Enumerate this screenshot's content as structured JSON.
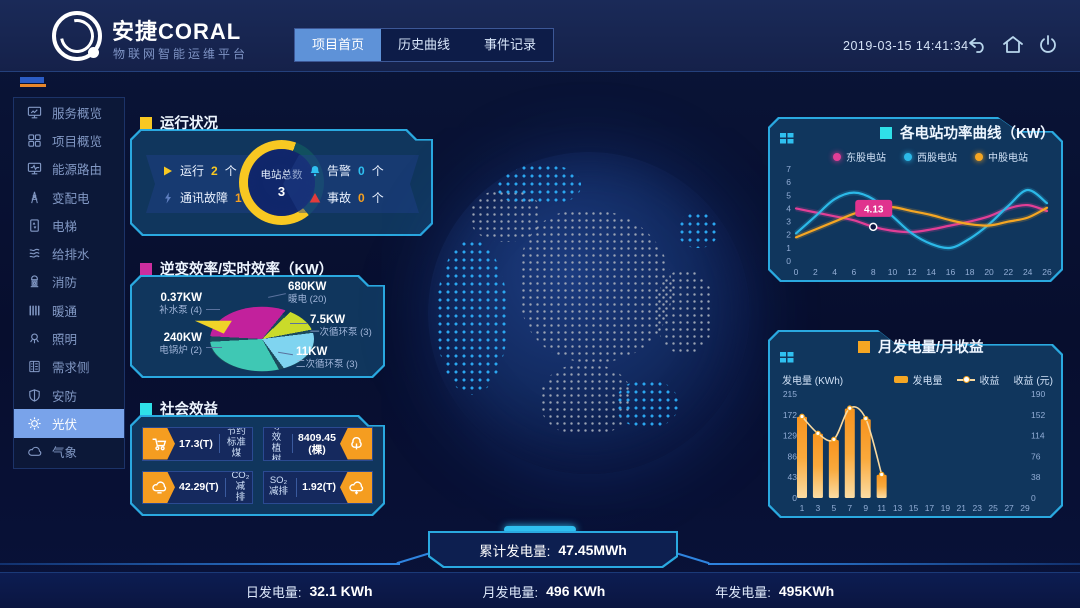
{
  "header": {
    "brand": {
      "title": "安捷CORAL",
      "subtitle": "物联网智能运维平台"
    },
    "tabs": [
      {
        "label": "项目首页",
        "active": true
      },
      {
        "label": "历史曲线",
        "active": false
      },
      {
        "label": "事件记录",
        "active": false
      }
    ],
    "datetime": "2019-03-15 14:41:34",
    "icons": [
      "back-icon",
      "home-icon",
      "power-icon"
    ]
  },
  "sidebar": {
    "items": [
      {
        "icon": "monitor-chart-icon",
        "label": "服务概览",
        "active": false
      },
      {
        "icon": "grid-icon",
        "label": "项目概览",
        "active": false
      },
      {
        "icon": "monitor-wave-icon",
        "label": "能源路由",
        "active": false
      },
      {
        "icon": "power-tower-icon",
        "label": "变配电",
        "active": false
      },
      {
        "icon": "elevator-icon",
        "label": "电梯",
        "active": false
      },
      {
        "icon": "water-layers-icon",
        "label": "给排水",
        "active": false
      },
      {
        "icon": "fire-hydrant-icon",
        "label": "消防",
        "active": false
      },
      {
        "icon": "radiator-icon",
        "label": "暖通",
        "active": false
      },
      {
        "icon": "light-icon",
        "label": "照明",
        "active": false
      },
      {
        "icon": "demand-doc-icon",
        "label": "需求侧",
        "active": false
      },
      {
        "icon": "shield-icon",
        "label": "安防",
        "active": false
      },
      {
        "icon": "solar-icon",
        "label": "光伏",
        "active": true
      },
      {
        "icon": "weather-icon",
        "label": "气象",
        "active": false
      }
    ]
  },
  "panels": {
    "status": {
      "title": "运行状况",
      "accent": "#f8c822",
      "left": [
        {
          "icon": "play-icon",
          "label": "运行",
          "value": "2",
          "unit": "个",
          "value_color": "#f8c822"
        },
        {
          "icon": "bolt-icon",
          "label": "通讯故障",
          "value": "1",
          "unit": "个",
          "value_color": "#f5a020"
        }
      ],
      "right": [
        {
          "icon": "bell-icon",
          "label": "告警",
          "value": "0",
          "unit": "个",
          "value_color": "#2fc0f0"
        },
        {
          "icon": "alert-icon",
          "label": "事故",
          "value": "0",
          "unit": "个",
          "value_color": "#f5a020"
        }
      ]
    },
    "inverter": {
      "title": "逆变效率/实时效率（KW）",
      "accent": "#cc2e9e"
    },
    "social": {
      "title": "社会效益",
      "accent": "#2fe0e8",
      "items": [
        {
          "icon": "coal-cart-icon",
          "value": "17.3(T)",
          "label": "节约标准煤"
        },
        {
          "icon": "tree-icon",
          "label": "等效植树",
          "value": "8409.45",
          "unit": "(棵)"
        },
        {
          "icon": "co2-cloud-icon",
          "value": "42.29(T)",
          "label": "CO₂减排"
        },
        {
          "icon": "so2-cloud-icon",
          "label": "SO₂减排",
          "value": "1.92(T)"
        }
      ]
    },
    "power_curve": {
      "title": "各电站功率曲线（KW）",
      "accent": "#2fe0e8"
    },
    "monthly": {
      "title": "月发电量/月收益",
      "accent": "#f5a623"
    }
  },
  "footer": {
    "total": {
      "label": "累计发电量:",
      "value": "47.45MWh"
    },
    "stats": [
      {
        "label": "日发电量:",
        "value": "32.1 KWh"
      },
      {
        "label": "月发电量:",
        "value": "496 KWh"
      },
      {
        "label": "年发电量:",
        "value": "495KWh"
      }
    ]
  },
  "chart_data": [
    {
      "type": "line",
      "title": "各电站功率曲线（KW）",
      "x": [
        0,
        2,
        4,
        6,
        8,
        10,
        12,
        14,
        16,
        18,
        20,
        22,
        24,
        26
      ],
      "series": [
        {
          "name": "东股电站",
          "color": "#e23e96",
          "values": [
            4.0,
            3.7,
            3.4,
            3.1,
            2.6,
            2.3,
            2.2,
            2.4,
            2.7,
            3.0,
            3.4,
            4.0,
            4.25,
            3.8
          ]
        },
        {
          "name": "西股电站",
          "color": "#2cb9e8",
          "values": [
            2.1,
            3.4,
            4.7,
            5.2,
            4.7,
            3.4,
            2.1,
            1.3,
            1.0,
            1.7,
            2.8,
            4.2,
            5.4,
            4.4
          ]
        },
        {
          "name": "中股电站",
          "color": "#f5a623",
          "values": [
            1.8,
            2.4,
            3.0,
            3.6,
            4.0,
            4.1,
            3.8,
            3.5,
            3.1,
            2.8,
            2.7,
            3.0,
            3.3,
            4.05
          ]
        }
      ],
      "ylim": [
        0,
        7
      ],
      "yticks": [
        0,
        1,
        2,
        3,
        4,
        5,
        6,
        7
      ],
      "tooltip": {
        "x": 8,
        "label": "4.13"
      },
      "legend_position": "top",
      "grid": false
    },
    {
      "type": "bar",
      "title": "月发电量/月收益",
      "xticks": [
        1,
        3,
        5,
        7,
        9,
        11,
        13,
        15,
        17,
        19,
        21,
        23,
        25,
        27,
        29
      ],
      "series": [
        {
          "name": "发电量",
          "type": "bar",
          "axis": "left",
          "color": "#f5a623",
          "x": [
            1,
            3,
            5,
            7,
            9,
            11
          ],
          "values": [
            168,
            133,
            120,
            185,
            163,
            48
          ]
        },
        {
          "name": "收益",
          "type": "line",
          "axis": "right",
          "color": "#f8d9a0",
          "x": [
            1,
            3,
            5,
            7,
            9,
            11
          ],
          "values": [
            149,
            118,
            107,
            164,
            145,
            43
          ]
        }
      ],
      "y_left": {
        "label": "发电量 (KWh)",
        "ticks": [
          215,
          172,
          129,
          86,
          43,
          0
        ],
        "max": 215
      },
      "y_right": {
        "label": "收益 (元)",
        "ticks": [
          190,
          152,
          114,
          76,
          38,
          0
        ],
        "max": 190
      },
      "grid": false
    },
    {
      "type": "pie",
      "title": "逆变效率/实时效率（KW）",
      "slices": [
        {
          "name": "暖电 (20)",
          "label": "680KW",
          "value_kw": 680,
          "color": "#c2219c"
        },
        {
          "name": "一次循环泵 (3)",
          "label": "7.5KW",
          "value_kw": 7.5,
          "color": "#cadb2a"
        },
        {
          "name": "二次循环泵 (3)",
          "label": "11KW",
          "value_kw": 11,
          "color": "#7fd4f0"
        },
        {
          "name": "电锅炉 (2)",
          "label": "240KW",
          "value_kw": 240,
          "color": "#3fc8b4"
        },
        {
          "name": "补水泵 (4)",
          "label": "0.37KW",
          "value_kw": 0.37,
          "color": "#f0d428"
        }
      ]
    },
    {
      "type": "donut",
      "center_label": "电站总数",
      "center_value": "3",
      "segments": [
        {
          "name": "运行",
          "value": 2,
          "color": "#f8c822"
        },
        {
          "name": "通讯故障",
          "value": 1,
          "color": "#11505f"
        }
      ]
    }
  ]
}
